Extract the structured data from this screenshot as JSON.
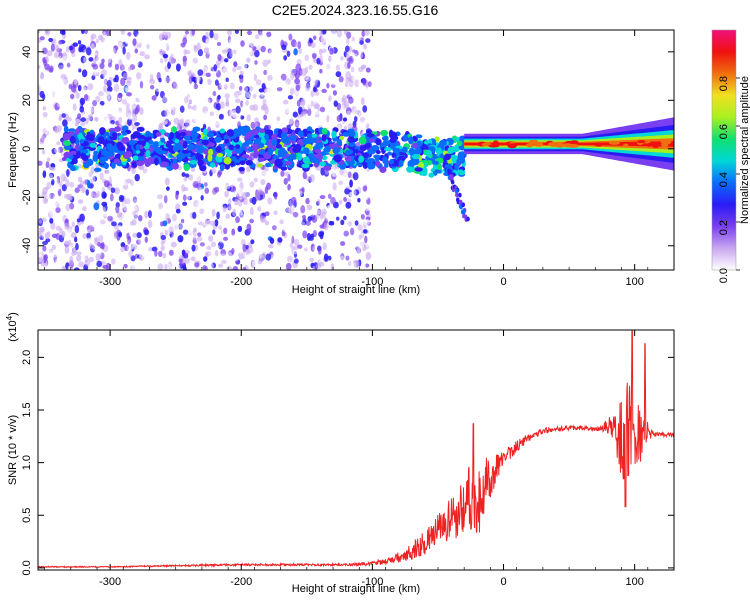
{
  "title": "C2E5.2024.323.16.55.G16",
  "colors": {
    "snr_line": "#ee2222",
    "frame": "#000000",
    "colormap": [
      "#ffffff",
      "#c9a7f0",
      "#7a3ff0",
      "#2a1bf5",
      "#0a6cff",
      "#00d7d7",
      "#10e070",
      "#a8f020",
      "#f0e020",
      "#f07010",
      "#f01010",
      "#f0107a"
    ]
  },
  "chart_data": [
    {
      "type": "heatmap",
      "title": "C2E5.2024.323.16.55.G16",
      "xlabel": "Height of straight line (km)",
      "ylabel": "Frequency (Hz)",
      "xlim": [
        -355,
        130
      ],
      "ylim": [
        -50,
        49
      ],
      "xticks": [
        -300,
        -200,
        -100,
        0,
        100
      ],
      "yticks": [
        -40,
        -20,
        0,
        20,
        40
      ],
      "grid": false,
      "colorbar": {
        "label": "Normalized spectral amplitude",
        "range": [
          0.0,
          1.0
        ],
        "ticks": [
          "0.0",
          "0.2",
          "0.4",
          "0.6",
          "0.8"
        ],
        "position": "right"
      },
      "features": {
        "noise_region_x": [
          -355,
          -110
        ],
        "noise_gaps_x": [
          [
            -275,
            -262
          ],
          [
            -178,
            -168
          ]
        ],
        "carrier_band": {
          "x_from": -30,
          "x_to": 130,
          "frequency_hz": 2,
          "peak_amplitude": 0.95
        },
        "diverging_trace": {
          "x_from": -45,
          "x_to": -28,
          "frequency_from": -5,
          "frequency_to": -29
        }
      }
    },
    {
      "type": "line",
      "xlabel": "Height of straight line (km)",
      "ylabel": "SNR (10 * v/v)",
      "y_multiplier": "(x10",
      "y_multiplier_exponent": "4",
      "xlim": [
        -355,
        130
      ],
      "ylim": [
        -0.02,
        2.26
      ],
      "xticks": [
        -300,
        -200,
        -100,
        0,
        100
      ],
      "yticks": [
        0.0,
        0.5,
        1.0,
        1.5,
        2.0
      ],
      "grid": false,
      "series": [
        {
          "x": [
            -355,
            -300,
            -250,
            -200,
            -150,
            -120,
            -100,
            -90,
            -80,
            -70,
            -60,
            -50,
            -40,
            -30,
            -25,
            -20,
            -15,
            -10,
            0,
            10,
            20,
            30,
            40,
            50,
            60,
            70,
            75,
            80,
            85,
            90,
            95,
            100,
            105,
            110,
            115,
            120,
            130
          ],
          "y": [
            0.01,
            0.01,
            0.02,
            0.03,
            0.03,
            0.03,
            0.04,
            0.06,
            0.1,
            0.16,
            0.24,
            0.35,
            0.45,
            0.6,
            0.7,
            0.55,
            0.75,
            0.85,
            1.05,
            1.15,
            1.25,
            1.3,
            1.32,
            1.33,
            1.33,
            1.32,
            1.33,
            1.35,
            1.3,
            1.25,
            1.35,
            1.2,
            1.3,
            1.28,
            1.27,
            1.27,
            1.26
          ],
          "noise_amplitude": [
            0.005,
            0.005,
            0.008,
            0.01,
            0.01,
            0.01,
            0.02,
            0.03,
            0.05,
            0.08,
            0.12,
            0.16,
            0.22,
            0.3,
            0.35,
            0.35,
            0.3,
            0.2,
            0.08,
            0.06,
            0.04,
            0.03,
            0.02,
            0.02,
            0.02,
            0.02,
            0.03,
            0.08,
            0.15,
            0.45,
            0.5,
            0.35,
            0.3,
            0.1,
            0.03,
            0.02,
            0.02
          ],
          "peaks": [
            {
              "x": 93,
              "y": 2.25
            },
            {
              "x": 98,
              "y": 2.25
            },
            {
              "x": 108,
              "y": 2.13
            },
            {
              "x": -23,
              "y": 1.37
            },
            {
              "x": 93,
              "y": 0.58
            }
          ]
        }
      ]
    }
  ]
}
